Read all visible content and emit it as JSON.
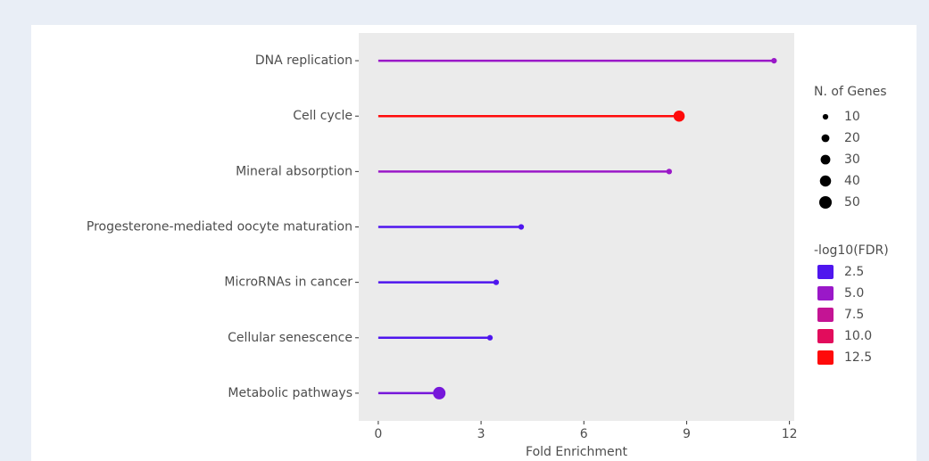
{
  "chart_data": {
    "type": "lollipop",
    "categories": [
      "DNA replication",
      "Cell cycle",
      "Mineral absorption",
      "Progesterone-mediated oocyte maturation",
      "MicroRNAs in cancer",
      "Cellular senescence",
      "Metabolic pathways"
    ],
    "values": [
      11.55,
      8.78,
      8.49,
      4.17,
      3.44,
      3.26,
      1.78
    ],
    "genes": [
      10,
      40,
      10,
      10,
      10,
      10,
      50
    ],
    "fdr": [
      5.0,
      12.5,
      5.0,
      2.5,
      2.5,
      2.5,
      3.8
    ],
    "xlabel": "Fold Enrichment",
    "xlim": [
      -0.57,
      12.14
    ],
    "xticks": [
      0,
      3,
      6,
      9,
      12
    ],
    "size_legend": {
      "title": "N. of Genes",
      "values": [
        10,
        20,
        30,
        40,
        50
      ]
    },
    "color_legend": {
      "title": "-log10(FDR)",
      "values": [
        2.5,
        5.0,
        7.5,
        10.0,
        12.5
      ],
      "labels": [
        "2.5",
        "5.0",
        "7.5",
        "10.0",
        "12.5"
      ],
      "colors": [
        "#4f16ee",
        "#9a18c8",
        "#c41494",
        "#e20c5c",
        "#ff0a0a"
      ]
    }
  }
}
